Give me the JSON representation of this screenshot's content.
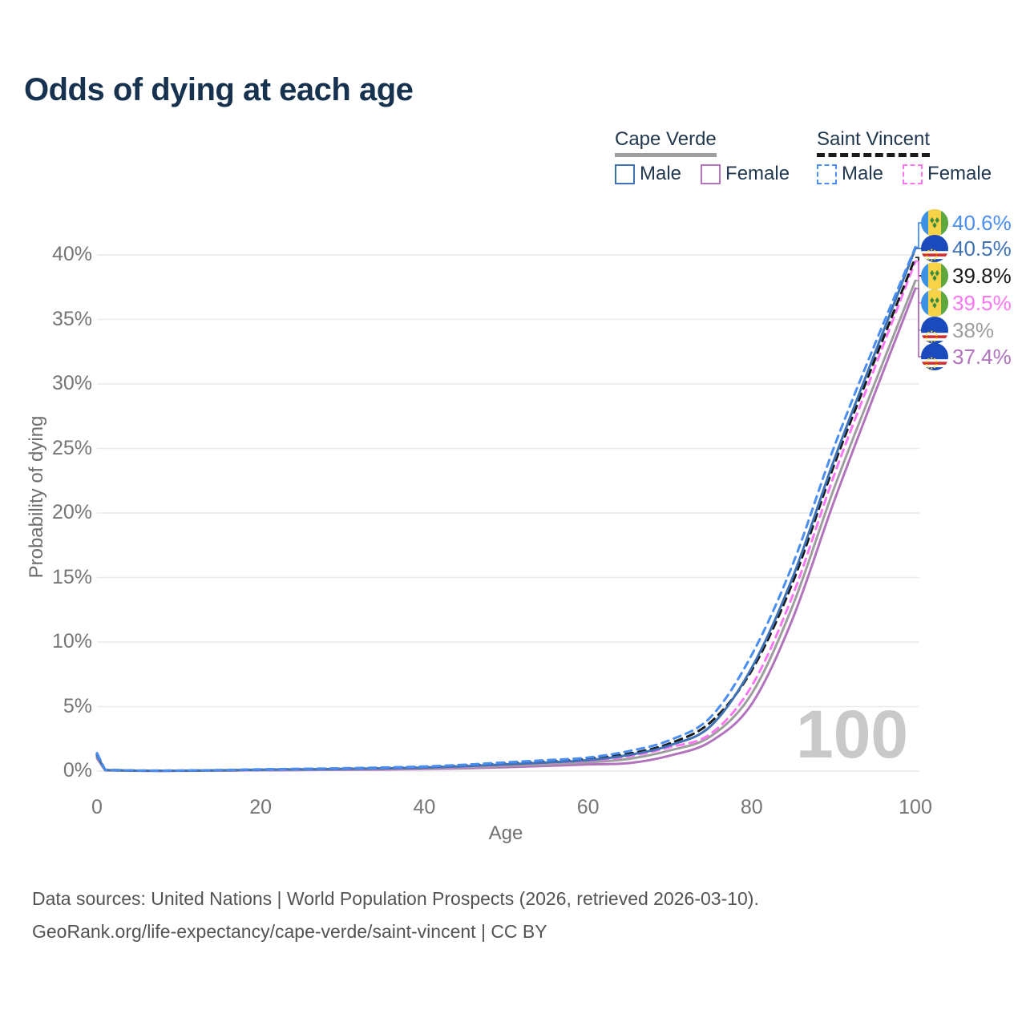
{
  "title": "Odds of dying at each age",
  "legend": {
    "groups": [
      {
        "name": "Cape Verde",
        "line_style": "solid",
        "line_color": "#9e9e9e",
        "items": [
          {
            "label": "Male",
            "color": "#3f72b4",
            "dashed": false
          },
          {
            "label": "Female",
            "color": "#b273bd",
            "dashed": false
          }
        ]
      },
      {
        "name": "Saint Vincent",
        "line_style": "dashed",
        "line_color": "#1a1a1a",
        "items": [
          {
            "label": "Male",
            "color": "#4b8ef1",
            "dashed": true
          },
          {
            "label": "Female",
            "color": "#fb76f3",
            "dashed": true
          }
        ]
      }
    ]
  },
  "axes": {
    "x": {
      "title": "Age",
      "ticks": [
        0,
        20,
        40,
        60,
        80,
        100
      ],
      "min": 0,
      "max": 100
    },
    "y": {
      "title": "Probability of dying",
      "ticks": [
        "0%",
        "5%",
        "10%",
        "15%",
        "20%",
        "25%",
        "30%",
        "35%",
        "40%"
      ],
      "min": 0,
      "max": 40
    }
  },
  "watermark": "100",
  "footer": {
    "line1": "Data sources: United Nations | World Population Prospects (2026, retrieved 2026-03-10).",
    "line2": "GeoRank.org/life-expectancy/cape-verde/saint-vincent | CC BY"
  },
  "chart_data": {
    "type": "line",
    "title": "Odds of dying at each age",
    "xlabel": "Age",
    "ylabel": "Probability of dying",
    "xlim": [
      0,
      100
    ],
    "ylim": [
      0,
      40
    ],
    "grid": "horizontal",
    "legend_position": "top-right",
    "x": [
      0,
      1,
      5,
      10,
      15,
      20,
      25,
      30,
      35,
      40,
      45,
      50,
      55,
      60,
      65,
      70,
      75,
      80,
      85,
      90,
      95,
      100
    ],
    "series": [
      {
        "name": "Saint Vincent — Male",
        "country": "Saint Vincent",
        "sex": "male",
        "flag": "saint-vincent",
        "color": "#4b8ef1",
        "dashed": true,
        "end_label": "40.6%",
        "values": [
          1.4,
          0.1,
          0.04,
          0.04,
          0.08,
          0.14,
          0.18,
          0.22,
          0.28,
          0.36,
          0.5,
          0.68,
          0.85,
          1.05,
          1.55,
          2.4,
          4.2,
          9.0,
          16.0,
          25.0,
          33.0,
          40.6
        ]
      },
      {
        "name": "Cape Verde — Male",
        "country": "Cape Verde",
        "sex": "male",
        "flag": "cape-verde",
        "color": "#3f72b4",
        "dashed": false,
        "end_label": "40.5%",
        "values": [
          1.2,
          0.08,
          0.03,
          0.03,
          0.06,
          0.11,
          0.14,
          0.17,
          0.21,
          0.27,
          0.38,
          0.52,
          0.67,
          0.85,
          1.25,
          2.0,
          3.5,
          8.0,
          15.0,
          24.0,
          32.3,
          40.5
        ]
      },
      {
        "name": "Saint Vincent — Both sexes",
        "country": "Saint Vincent",
        "sex": "both",
        "flag": "saint-vincent",
        "color": "#1a1a1a",
        "dashed": true,
        "end_label": "39.8%",
        "values": [
          1.3,
          0.09,
          0.04,
          0.04,
          0.07,
          0.12,
          0.16,
          0.19,
          0.24,
          0.31,
          0.44,
          0.59,
          0.75,
          0.95,
          1.35,
          2.15,
          3.8,
          7.8,
          14.6,
          23.6,
          31.8,
          39.8
        ]
      },
      {
        "name": "Saint Vincent — Female",
        "country": "Saint Vincent",
        "sex": "female",
        "flag": "saint-vincent",
        "color": "#fb76f3",
        "dashed": true,
        "end_label": "39.5%",
        "values": [
          1.2,
          0.08,
          0.03,
          0.03,
          0.05,
          0.09,
          0.12,
          0.15,
          0.19,
          0.25,
          0.36,
          0.5,
          0.64,
          0.8,
          1.15,
          1.85,
          2.9,
          6.6,
          13.6,
          22.8,
          31.2,
          39.5
        ]
      },
      {
        "name": "Cape Verde — Both sexes",
        "country": "Cape Verde",
        "sex": "both",
        "flag": "cape-verde",
        "color": "#9e9e9e",
        "dashed": false,
        "end_label": "38%",
        "values": [
          1.1,
          0.07,
          0.03,
          0.03,
          0.05,
          0.08,
          0.1,
          0.13,
          0.16,
          0.21,
          0.29,
          0.4,
          0.52,
          0.68,
          0.95,
          1.6,
          2.7,
          6.0,
          12.8,
          21.8,
          30.0,
          38.0
        ]
      },
      {
        "name": "Cape Verde — Female",
        "country": "Cape Verde",
        "sex": "female",
        "flag": "cape-verde",
        "color": "#b273bd",
        "dashed": false,
        "end_label": "37.4%",
        "values": [
          1.0,
          0.06,
          0.02,
          0.02,
          0.04,
          0.06,
          0.08,
          0.1,
          0.12,
          0.16,
          0.22,
          0.3,
          0.4,
          0.52,
          0.62,
          1.2,
          2.3,
          5.2,
          11.8,
          20.8,
          29.2,
          37.4
        ]
      }
    ]
  }
}
